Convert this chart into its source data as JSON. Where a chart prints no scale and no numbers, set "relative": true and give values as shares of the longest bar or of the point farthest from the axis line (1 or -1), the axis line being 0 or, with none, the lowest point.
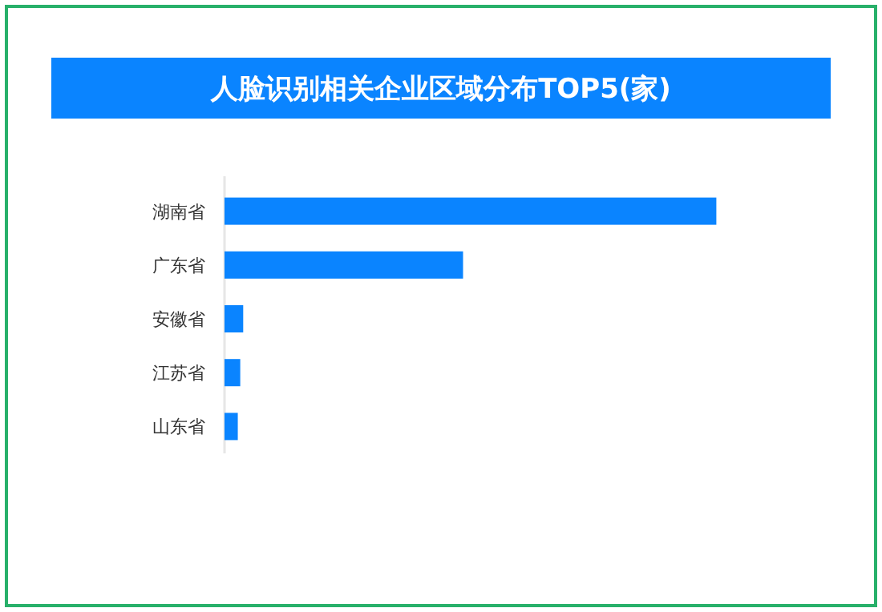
{
  "chart_data": {
    "type": "bar",
    "orientation": "horizontal",
    "relative": true,
    "title": "人脸识别相关企业区域分布TOP5(家)",
    "categories": [
      "湖南省",
      "广东省",
      "安徽省",
      "江苏省",
      "山东省"
    ],
    "series": [
      {
        "color": "#0a84ff",
        "values": [
          1,
          0.485,
          0.038,
          0.032,
          0.027
        ]
      }
    ]
  }
}
